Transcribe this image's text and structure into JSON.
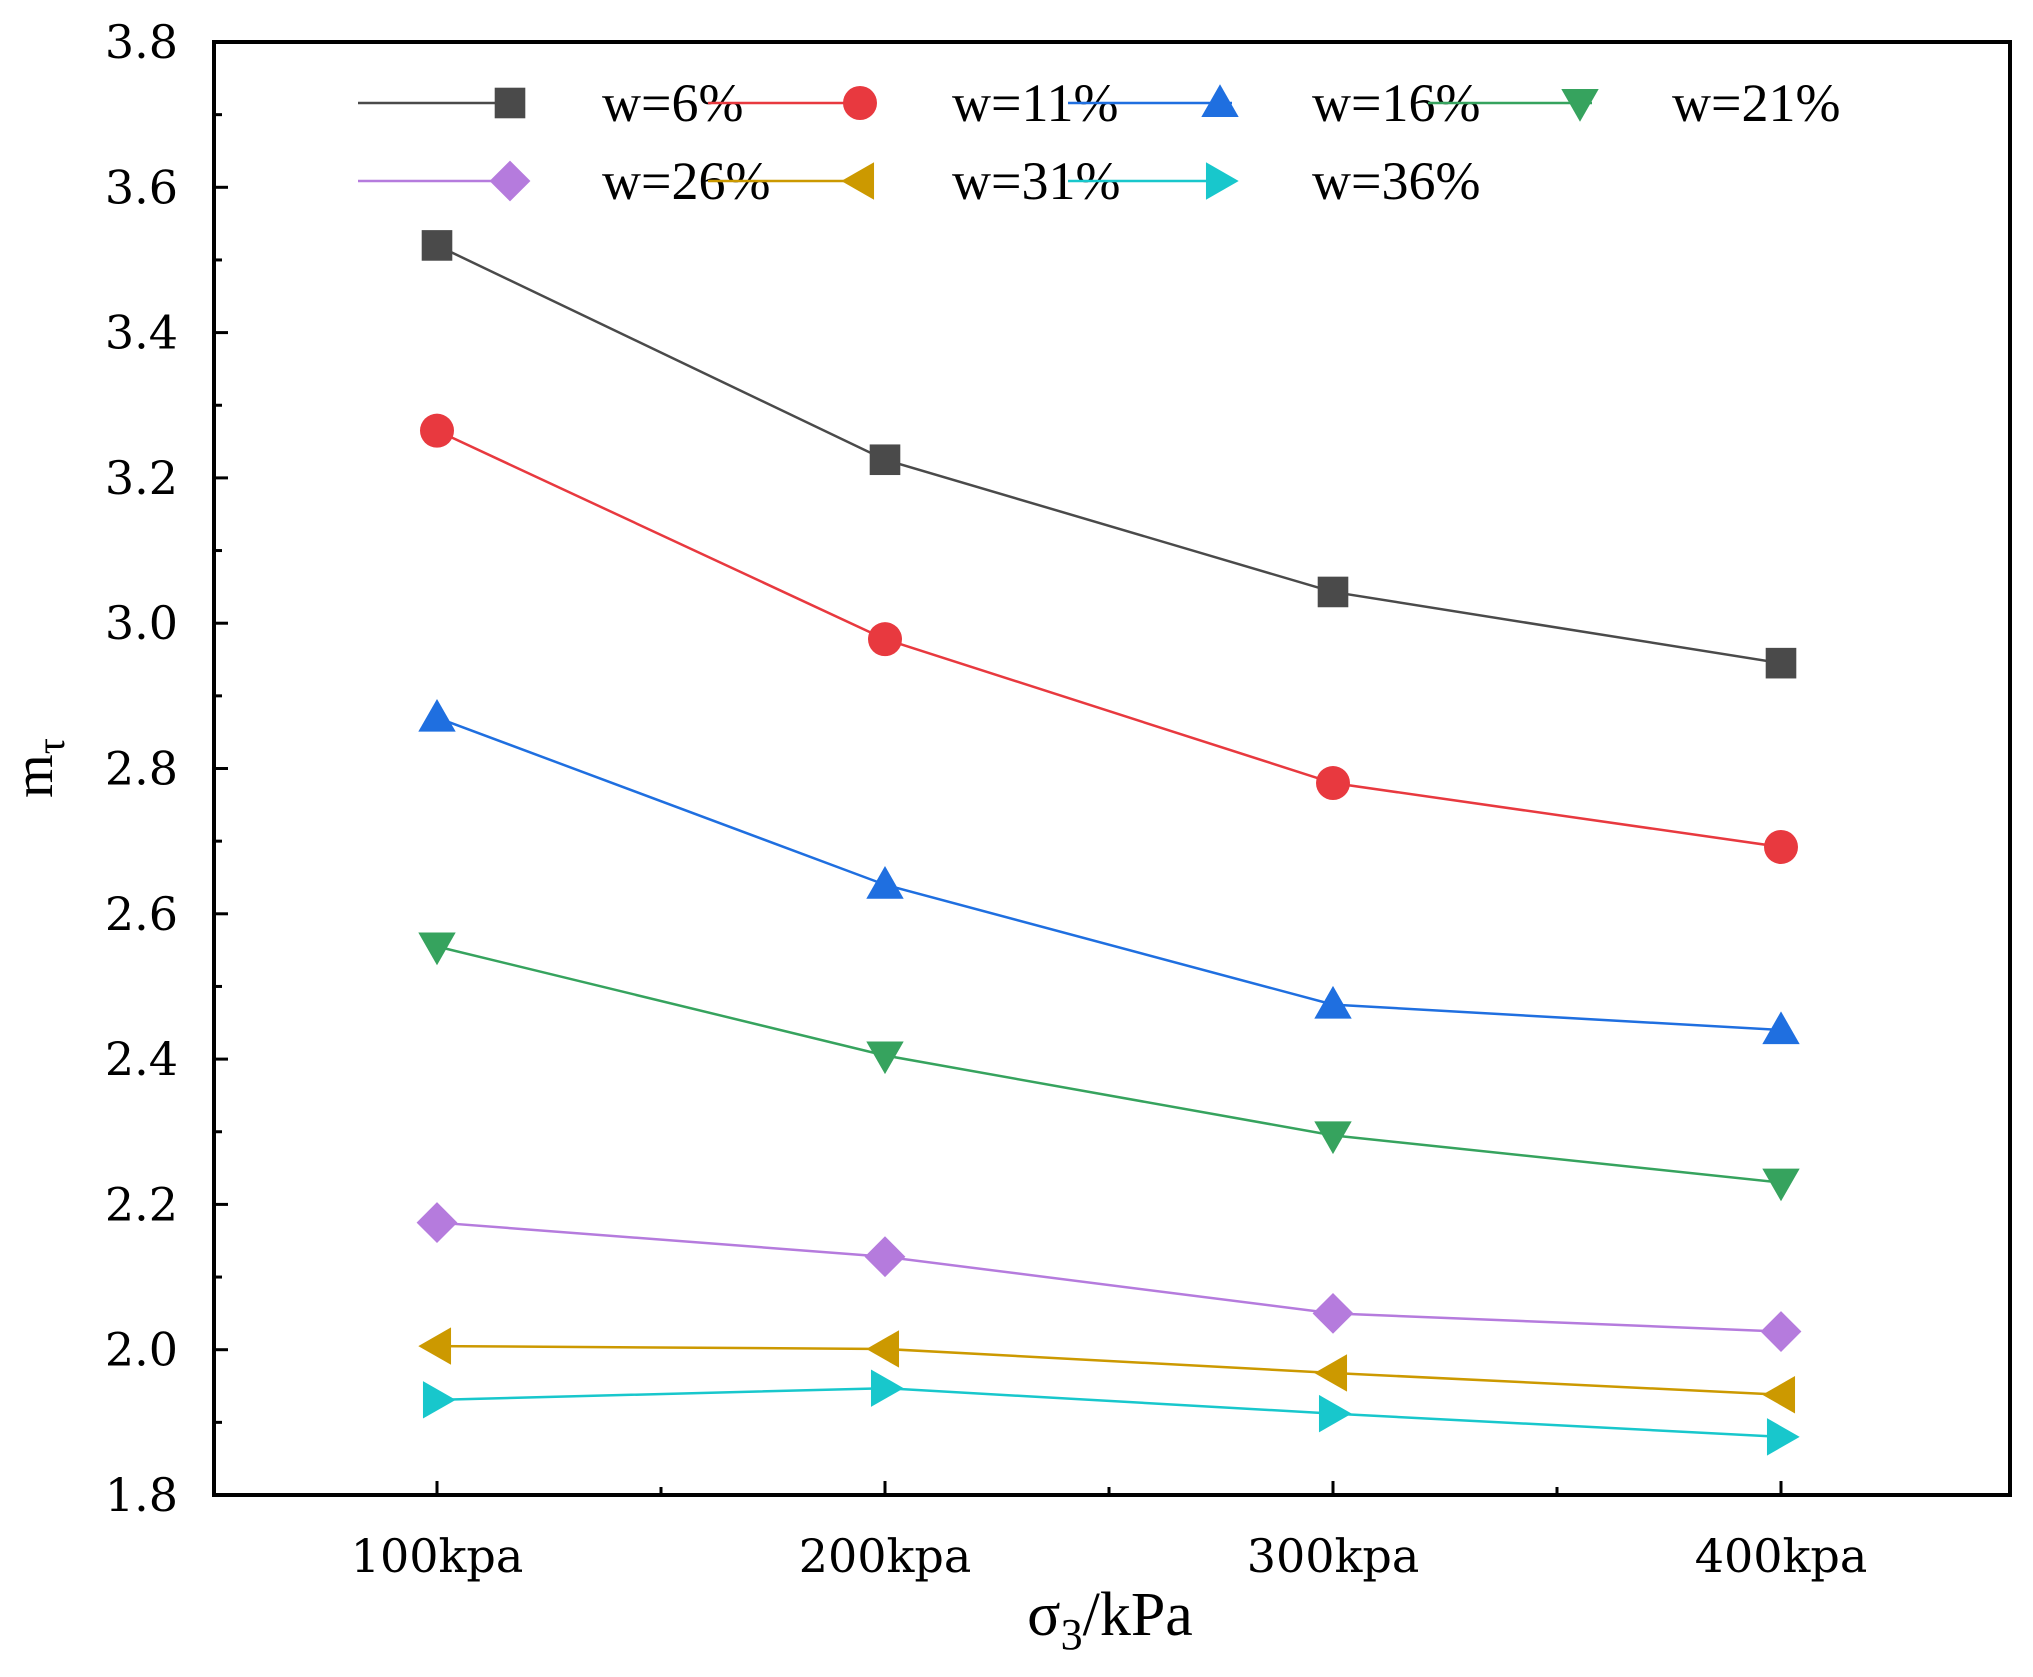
{
  "chart_data": {
    "type": "line",
    "categories": [
      "100kpa",
      "200kpa",
      "300kpa",
      "400kpa"
    ],
    "xlabel": {
      "main": "σ",
      "sub": "3",
      "rest": "/kPa"
    },
    "ylabel": {
      "main": "m",
      "sub": "τ"
    },
    "ylim": [
      1.8,
      3.8
    ],
    "yticks": [
      "1.8",
      "2.0",
      "2.2",
      "2.4",
      "2.6",
      "2.8",
      "3.0",
      "3.2",
      "3.4",
      "3.6",
      "3.8"
    ],
    "grid": false,
    "legend_position": "top",
    "series": [
      {
        "name": "w=6%",
        "marker": "square",
        "color": "#4a4a4a",
        "values": [
          3.52,
          3.225,
          3.043,
          2.945
        ]
      },
      {
        "name": "w=11%",
        "marker": "circle",
        "color": "#e8393f",
        "values": [
          3.265,
          2.978,
          2.78,
          2.692
        ]
      },
      {
        "name": "w=16%",
        "marker": "triangle-up",
        "color": "#1f6fe0",
        "values": [
          2.87,
          2.64,
          2.475,
          2.44
        ]
      },
      {
        "name": "w=21%",
        "marker": "triangle-down",
        "color": "#36a35e",
        "values": [
          2.555,
          2.405,
          2.295,
          2.23
        ]
      },
      {
        "name": "w=26%",
        "marker": "diamond",
        "color": "#b57bdd",
        "values": [
          2.175,
          2.128,
          2.05,
          2.025
        ]
      },
      {
        "name": "w=31%",
        "marker": "triangle-left",
        "color": "#cc9900",
        "values": [
          2.005,
          2.001,
          1.968,
          1.938
        ]
      },
      {
        "name": "w=36%",
        "marker": "triangle-right",
        "color": "#18c7cc",
        "values": [
          1.931,
          1.947,
          1.912,
          1.88
        ]
      }
    ]
  }
}
